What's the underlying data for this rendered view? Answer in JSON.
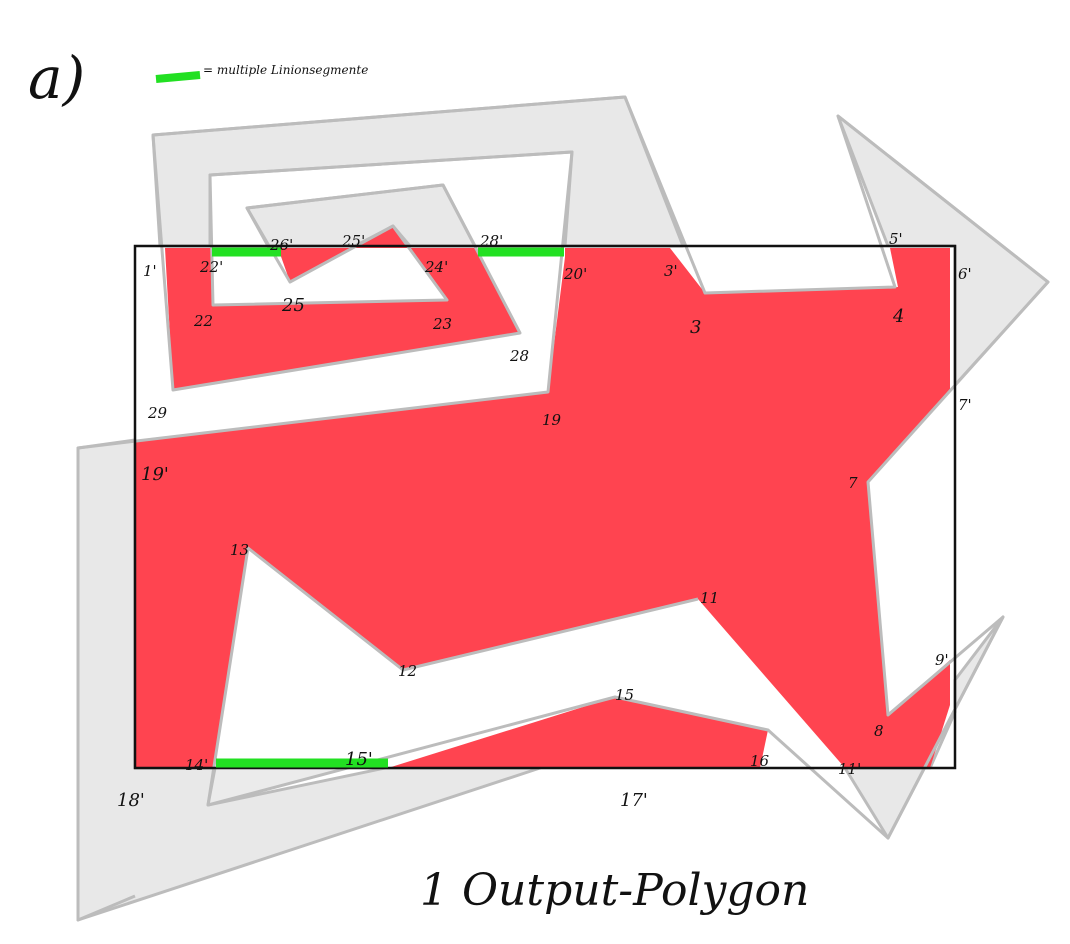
{
  "section_label": "a)",
  "legend": {
    "text": "= multiple Linionsegmente",
    "color": "#22e022"
  },
  "output_label": "1 Output-Polygon",
  "colors": {
    "subject_polygon_fill": "#e9e9e9",
    "subject_polygon_stroke": "#bdbdbd",
    "result_fill": "#ff4450",
    "clip_rect_stroke": "#111111",
    "highlight_segment": "#22e022"
  },
  "vertex_labels": {
    "v1p": "1'",
    "v3p": "3'",
    "v5p": "5'",
    "v6p": "6'",
    "v7p": "7'",
    "v9p": "9'",
    "v11p": "11'",
    "v14p": "14'",
    "v15p": "15'",
    "v17p": "17'",
    "v18p": "18'",
    "v19p": "19'",
    "v20p": "20'",
    "v22p": "22'",
    "v24p": "24'",
    "v25p": "25'",
    "v26p": "26'",
    "v28p": "28'",
    "v3": "3",
    "v4": "4",
    "v7": "7",
    "v8": "8",
    "v11": "11",
    "v12": "12",
    "v13": "13",
    "v15": "15",
    "v16": "16",
    "v19": "19",
    "v22": "22",
    "v23": "23",
    "v25": "25",
    "v28": "28",
    "v29": "29"
  }
}
